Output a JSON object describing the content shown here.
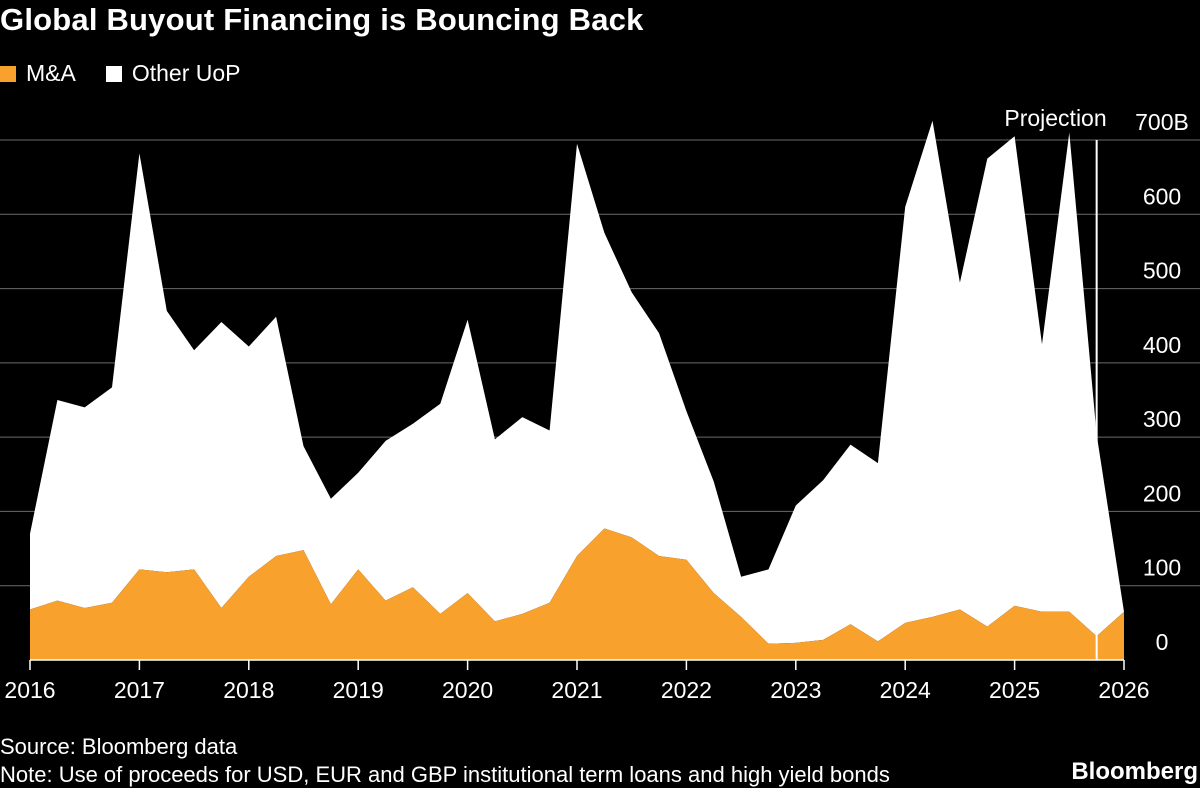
{
  "title": "Global Buyout Financing is Bouncing Back",
  "legend": [
    {
      "label": "M&A",
      "color": "#f8a12d"
    },
    {
      "label": "Other UoP",
      "color": "#ffffff"
    }
  ],
  "source": "Source: Bloomberg data",
  "note": "Note: Use of proceeds for USD, EUR and GBP institutional term loans and high yield bonds",
  "brand": "Bloomberg",
  "chart_data": {
    "type": "area",
    "stacked": true,
    "x_start_year": 2016,
    "points_per_year": 4,
    "x_ticks": [
      "2016",
      "2017",
      "2018",
      "2019",
      "2020",
      "2021",
      "2022",
      "2023",
      "2024",
      "2025",
      "2026"
    ],
    "y_ticks": [
      {
        "value": 0,
        "label": "0"
      },
      {
        "value": 100,
        "label": "100"
      },
      {
        "value": 200,
        "label": "200"
      },
      {
        "value": 300,
        "label": "300"
      },
      {
        "value": 400,
        "label": "400"
      },
      {
        "value": 500,
        "label": "500"
      },
      {
        "value": 600,
        "label": "600"
      },
      {
        "value": 700,
        "label": "700B"
      }
    ],
    "ylim": [
      0,
      700
    ],
    "grid": true,
    "legend_position": "top-left",
    "annotation": {
      "label": "Projection",
      "x_index": 39
    },
    "series": [
      {
        "name": "M&A",
        "color": "#f8a12d",
        "values": [
          68,
          80,
          70,
          77,
          122,
          118,
          122,
          70,
          112,
          140,
          148,
          75,
          122,
          80,
          98,
          62,
          90,
          52,
          62,
          77,
          140,
          177,
          165,
          140,
          135,
          90,
          58,
          22,
          23,
          27,
          48,
          25,
          50,
          58,
          68,
          45,
          73,
          65,
          65,
          32,
          65
        ]
      },
      {
        "name": "Other UoP",
        "color": "#ffffff",
        "values": [
          102,
          270,
          270,
          290,
          560,
          352,
          295,
          385,
          310,
          322,
          140,
          142,
          130,
          215,
          220,
          283,
          368,
          245,
          265,
          232,
          555,
          398,
          330,
          300,
          200,
          150,
          54,
          100,
          185,
          215,
          242,
          240,
          560,
          668,
          440,
          630,
          632,
          360,
          645,
          272,
          0
        ]
      }
    ]
  }
}
